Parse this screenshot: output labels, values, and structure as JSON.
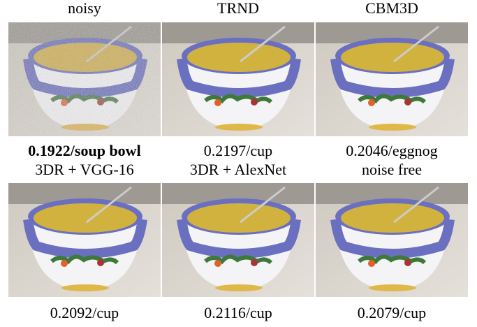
{
  "panels": [
    {
      "title": "noisy",
      "caption": "0.1922/soup bowl",
      "bold": true,
      "noisy": true
    },
    {
      "title": "TRND",
      "caption": "0.2197/cup"
    },
    {
      "title": "CBM3D",
      "caption": "0.2046/eggnog"
    },
    {
      "title": "3DR + VGG-16",
      "caption": "0.2092/cup"
    },
    {
      "title": "3DR + AlexNet",
      "caption": "0.2116/cup"
    },
    {
      "title": "noise free",
      "caption": "0.2079/cup"
    }
  ]
}
